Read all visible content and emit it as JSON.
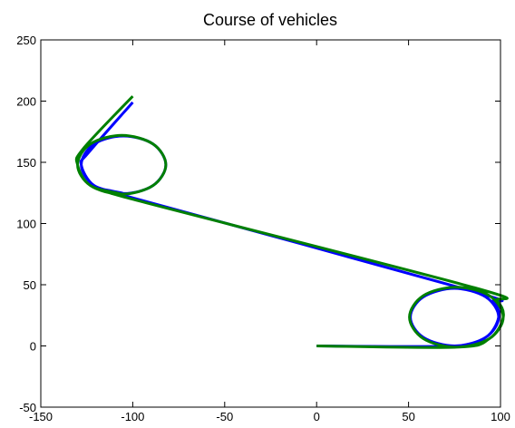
{
  "chart_data": {
    "type": "line",
    "title": "Course of vehicles",
    "xlim": [
      -150,
      100
    ],
    "xticks": [
      -150,
      -100,
      -50,
      0,
      50,
      100
    ],
    "ylim": [
      -50,
      250
    ],
    "yticks": [
      -50,
      0,
      50,
      100,
      150,
      200,
      250
    ],
    "series": [
      {
        "color": "#0000ff",
        "x": [
          0,
          75,
          92,
          99,
          92,
          75,
          58,
          51,
          58,
          75,
          92,
          99,
          96,
          83,
          -100,
          -105,
          -121,
          -128,
          -121,
          -105,
          -89,
          -82,
          -89,
          -105,
          -121,
          -128,
          -124,
          -100
        ],
        "values": [
          0,
          0,
          7,
          23.5,
          40,
          47,
          40,
          23.5,
          7,
          0,
          7,
          23.5,
          36,
          45.5,
          121,
          124.5,
          131,
          148,
          165,
          171.5,
          165,
          148,
          131,
          124.5,
          131,
          148,
          158,
          199
        ]
      },
      {
        "color": "#008000",
        "x": [
          0,
          76,
          94,
          101.5,
          94,
          76,
          58,
          50.5,
          58,
          76,
          94,
          101.5,
          98,
          86,
          -98,
          -106,
          -123,
          -130,
          -123,
          -106,
          -89,
          -82,
          -89,
          -106,
          -123,
          -130,
          -127,
          -100
        ],
        "values": [
          0,
          -1,
          6,
          23.5,
          41,
          48,
          41,
          23.5,
          6,
          -1,
          6,
          23.5,
          37,
          47.5,
          119,
          124,
          131,
          148,
          165,
          172,
          165,
          148,
          131,
          124,
          131,
          148,
          161,
          204
        ]
      }
    ]
  }
}
